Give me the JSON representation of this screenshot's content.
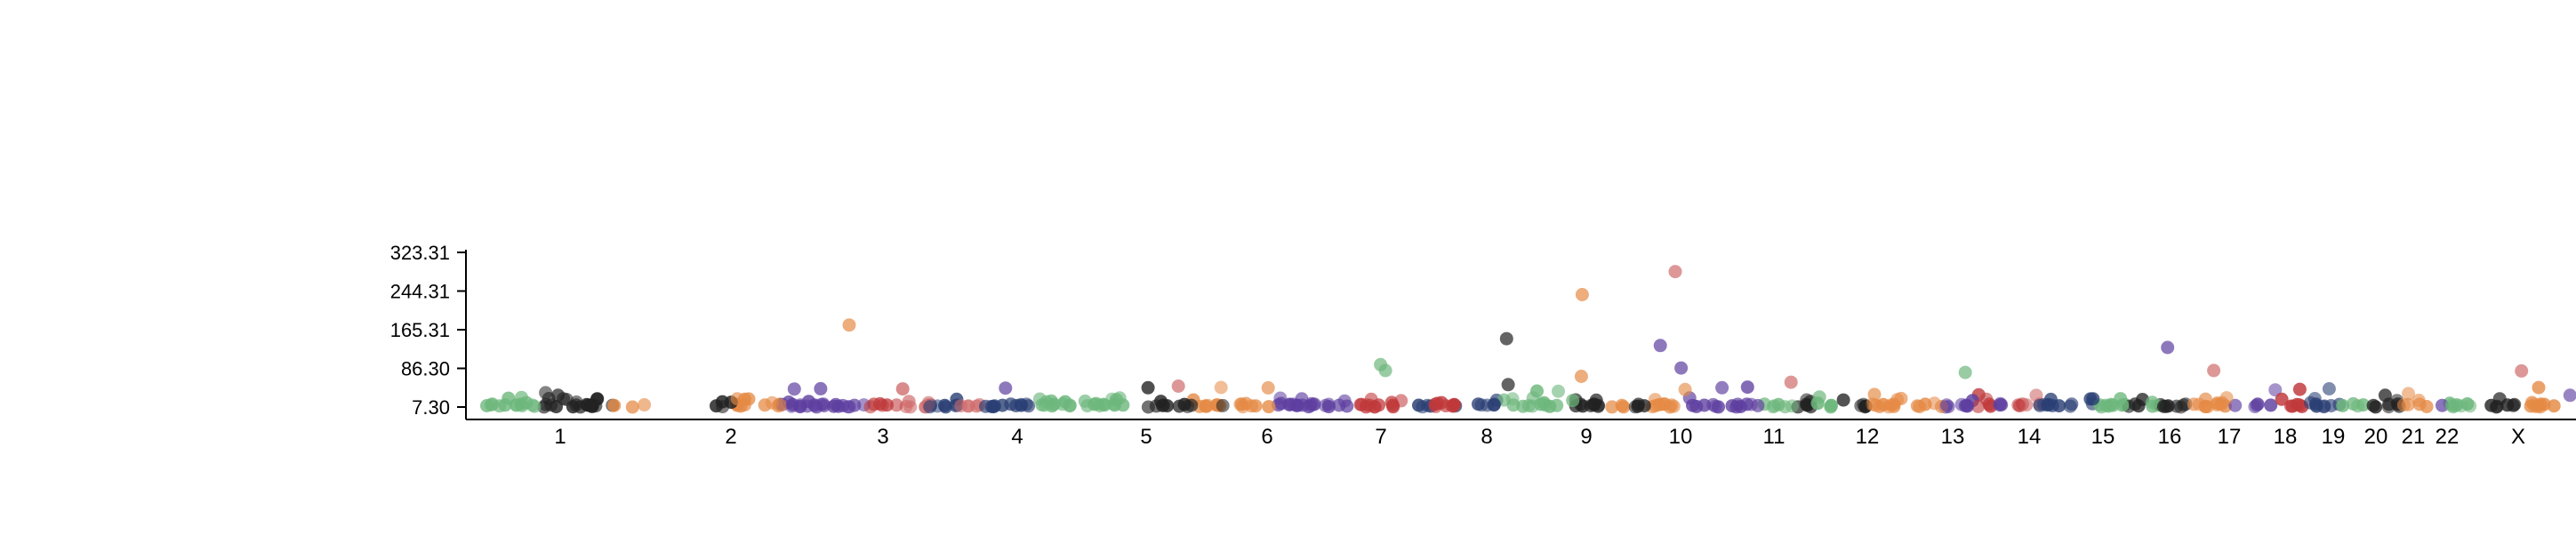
{
  "chart_data": {
    "type": "scatter",
    "title": "",
    "xlabel": "",
    "ylabel": "",
    "y_ticks": [
      7.3,
      86.3,
      165.31,
      244.31,
      323.31
    ],
    "y_tick_labels": [
      "7.30",
      "86.30",
      "165.31",
      "244.31",
      "323.31"
    ],
    "ylim": [
      7.3,
      323.31
    ],
    "x_categories": [
      "1",
      "2",
      "3",
      "4",
      "5",
      "6",
      "7",
      "8",
      "9",
      "10",
      "11",
      "12",
      "13",
      "14",
      "15",
      "16",
      "17",
      "18",
      "19",
      "20",
      "21",
      "22",
      "X"
    ],
    "colors": {
      "green": "#6db77c",
      "black": "#222222",
      "orange": "#e58a45",
      "purple": "#5e3fa0",
      "red": "#c0393b",
      "navy": "#2a3f74",
      "salmon": "#cf6b6b"
    },
    "outliers": [
      {
        "chromosome": "3",
        "value": 175,
        "color": "orange"
      },
      {
        "chromosome": "4",
        "value": 46,
        "color": "purple"
      },
      {
        "chromosome": "5",
        "value": 50,
        "color": "salmon"
      },
      {
        "chromosome": "7",
        "value": 82,
        "color": "green"
      },
      {
        "chromosome": "7",
        "value": 94,
        "color": "green"
      },
      {
        "chromosome": "8",
        "value": 147,
        "color": "black"
      },
      {
        "chromosome": "8",
        "value": 53,
        "color": "black"
      },
      {
        "chromosome": "9",
        "value": 237,
        "color": "orange"
      },
      {
        "chromosome": "9",
        "value": 70,
        "color": "orange"
      },
      {
        "chromosome": "10",
        "value": 87,
        "color": "purple"
      },
      {
        "chromosome": "10",
        "value": 133,
        "color": "purple"
      },
      {
        "chromosome": "10",
        "value": 284,
        "color": "salmon"
      },
      {
        "chromosome": "11",
        "value": 58,
        "color": "salmon"
      },
      {
        "chromosome": "13",
        "value": 78,
        "color": "green"
      },
      {
        "chromosome": "16",
        "value": 129,
        "color": "purple"
      },
      {
        "chromosome": "17",
        "value": 82,
        "color": "salmon"
      },
      {
        "chromosome": "X",
        "value": 81,
        "color": "salmon"
      }
    ]
  }
}
